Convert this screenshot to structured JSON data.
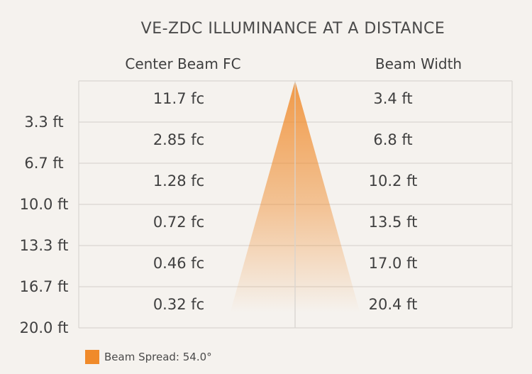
{
  "chart_data": {
    "type": "table",
    "title": "VE-ZDC ILLUMINANCE AT A DISTANCE",
    "columns": [
      "Center Beam FC",
      "Beam Width"
    ],
    "rows": [
      {
        "distance": "3.3 ft",
        "center_beam_fc": "11.7 fc",
        "beam_width": "3.4 ft"
      },
      {
        "distance": "6.7 ft",
        "center_beam_fc": "2.85 fc",
        "beam_width": "6.8 ft"
      },
      {
        "distance": "10.0 ft",
        "center_beam_fc": "1.28 fc",
        "beam_width": "10.2 ft"
      },
      {
        "distance": "13.3 ft",
        "center_beam_fc": "0.72 fc",
        "beam_width": "13.5 ft"
      },
      {
        "distance": "16.7 ft",
        "center_beam_fc": "0.46 fc",
        "beam_width": "17.0 ft"
      },
      {
        "distance": "20.0 ft",
        "center_beam_fc": "0.32 fc",
        "beam_width": "20.4 ft"
      }
    ],
    "beam_spread_deg": 54.0,
    "legend": "Beam Spread: 54.0°",
    "beam_color": "#f08a2a",
    "grid_color": "#d9d6d2"
  }
}
